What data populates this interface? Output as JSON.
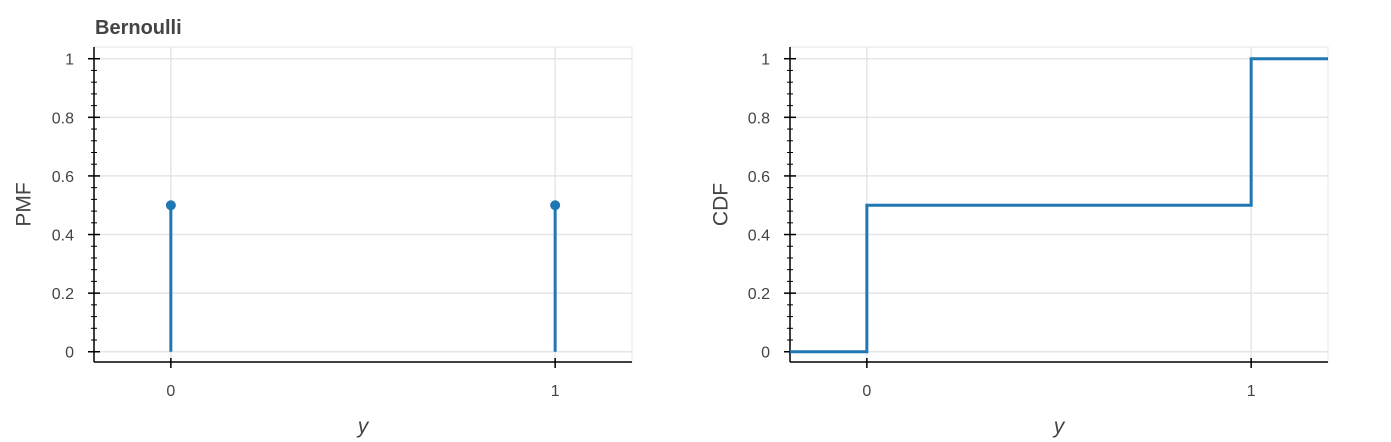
{
  "colors": {
    "series": "#1f77b4",
    "grid": "#e5e5e5",
    "axis": "#000000",
    "text": "#444444"
  },
  "chart_data": [
    {
      "type": "stem",
      "title": "Bernoulli",
      "xlabel": "y",
      "ylabel": "PMF",
      "xlim": [
        -0.2,
        1.2
      ],
      "ylim": [
        -0.035,
        1.04
      ],
      "xticks": [
        0,
        1
      ],
      "xtick_labels": [
        "0",
        "1"
      ],
      "yticks": [
        0,
        0.2,
        0.4,
        0.6,
        0.8,
        1
      ],
      "ytick_labels": [
        "0",
        "0.2",
        "0.4",
        "0.6",
        "0.8",
        "1"
      ],
      "grid": true,
      "series": [
        {
          "x": [
            0,
            1
          ],
          "y": [
            0.5,
            0.5
          ]
        }
      ]
    },
    {
      "type": "step",
      "title": "",
      "xlabel": "y",
      "ylabel": "CDF",
      "xlim": [
        -0.2,
        1.2
      ],
      "ylim": [
        -0.035,
        1.04
      ],
      "xticks": [
        0,
        1
      ],
      "xtick_labels": [
        "0",
        "1"
      ],
      "yticks": [
        0,
        0.2,
        0.4,
        0.6,
        0.8,
        1
      ],
      "ytick_labels": [
        "0",
        "0.2",
        "0.4",
        "0.6",
        "0.8",
        "1"
      ],
      "grid": true,
      "series": [
        {
          "x": [
            -0.2,
            0,
            0,
            1,
            1,
            1.2
          ],
          "y": [
            0,
            0,
            0.5,
            0.5,
            1,
            1
          ]
        }
      ]
    }
  ]
}
